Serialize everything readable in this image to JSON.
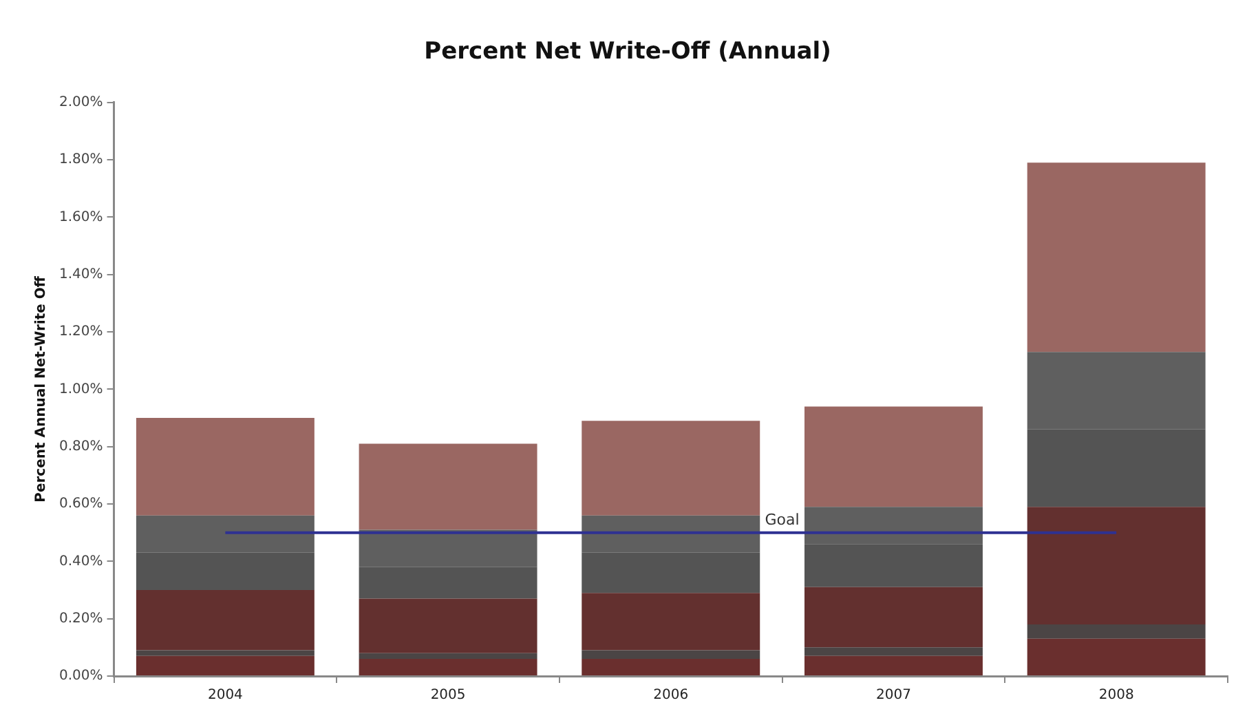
{
  "chart_data": {
    "type": "bar",
    "title": "Percent Net Write-Off (Annual)",
    "ylabel": "Percent Annual Net-Write Off",
    "categories": [
      "2004",
      "2005",
      "2006",
      "2007",
      "2008"
    ],
    "stacked": true,
    "series": [
      {
        "color": "#6a2f2e",
        "values": [
          0.07,
          0.06,
          0.06,
          0.07,
          0.13
        ]
      },
      {
        "color": "#4b4545",
        "values": [
          0.02,
          0.02,
          0.03,
          0.03,
          0.05
        ]
      },
      {
        "color": "#63302f",
        "values": [
          0.21,
          0.19,
          0.2,
          0.21,
          0.41
        ]
      },
      {
        "color": "#545454",
        "values": [
          0.13,
          0.11,
          0.14,
          0.15,
          0.27
        ]
      },
      {
        "color": "#5f5f5f",
        "values": [
          0.13,
          0.13,
          0.13,
          0.13,
          0.27
        ]
      },
      {
        "color": "#9a6762",
        "values": [
          0.34,
          0.3,
          0.33,
          0.35,
          0.66
        ]
      },
      {
        "type": "line",
        "name": "Goal",
        "color": "#2e3192",
        "values": [
          0.5,
          0.5,
          0.5,
          0.5,
          0.5
        ]
      }
    ],
    "ylim": [
      0,
      2
    ],
    "yticks": [
      {
        "value": 0,
        "label": "0.00%"
      },
      {
        "value": 0.2,
        "label": "0.20%"
      },
      {
        "value": 0.4,
        "label": "0.40%"
      },
      {
        "value": 0.6,
        "label": "0.60%"
      },
      {
        "value": 0.8,
        "label": "0.80%"
      },
      {
        "value": 1,
        "label": "1.00%"
      },
      {
        "value": 1.2,
        "label": "1.20%"
      },
      {
        "value": 1.4,
        "label": "1.40%"
      },
      {
        "value": 1.6,
        "label": "1.60%"
      },
      {
        "value": 1.8,
        "label": "1.80%"
      },
      {
        "value": 2,
        "label": "2.00%"
      }
    ],
    "grid": false,
    "legend": false,
    "marker": "none"
  }
}
